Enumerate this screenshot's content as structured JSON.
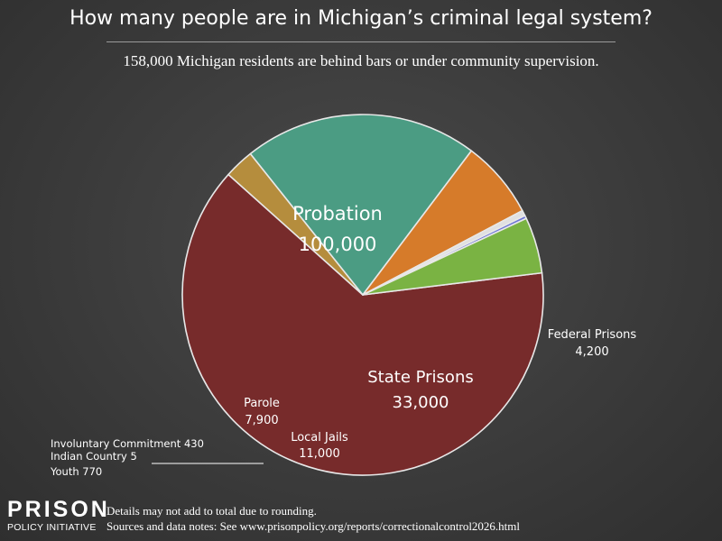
{
  "title": "How many people are in Michigan’s criminal legal system?",
  "subtitle": "158,000 Michigan residents are behind bars or under community supervision.",
  "chart_data": {
    "type": "pie",
    "slices": [
      {
        "label": "Probation",
        "value": 100000,
        "display": "100,000",
        "color": "#772b2b",
        "label_style": "inside-large"
      },
      {
        "label": "Federal Prisons",
        "value": 4200,
        "display": "4,200",
        "color": "#b58d3d",
        "label_style": "outside"
      },
      {
        "label": "State Prisons",
        "value": 33000,
        "display": "33,000",
        "color": "#4b9c83",
        "label_style": "inside-large"
      },
      {
        "label": "Local Jails",
        "value": 11000,
        "display": "11,000",
        "color": "#d67b2a",
        "label_style": "inside-small"
      },
      {
        "label": "Youth",
        "value": 770,
        "display": "770",
        "color": "#e0e0e0",
        "label_style": "outside-left"
      },
      {
        "label": "Indian Country",
        "value": 5,
        "display": "5",
        "color": "#ffffff",
        "label_style": "outside-left"
      },
      {
        "label": "Involuntary Commitment",
        "value": 430,
        "display": "430",
        "color": "#6b74d6",
        "label_style": "outside-left"
      },
      {
        "label": "Parole",
        "value": 7900,
        "display": "7,900",
        "color": "#7ab343",
        "label_style": "inside-small"
      }
    ]
  },
  "logo": {
    "line1": "PRISON",
    "line2": "POLICY INITIATIVE"
  },
  "notes": {
    "line1": "Details may not add to total due to rounding.",
    "line2": "Sources and data notes: See www.prisonpolicy.org/reports/correctionalcontrol2026.html"
  }
}
